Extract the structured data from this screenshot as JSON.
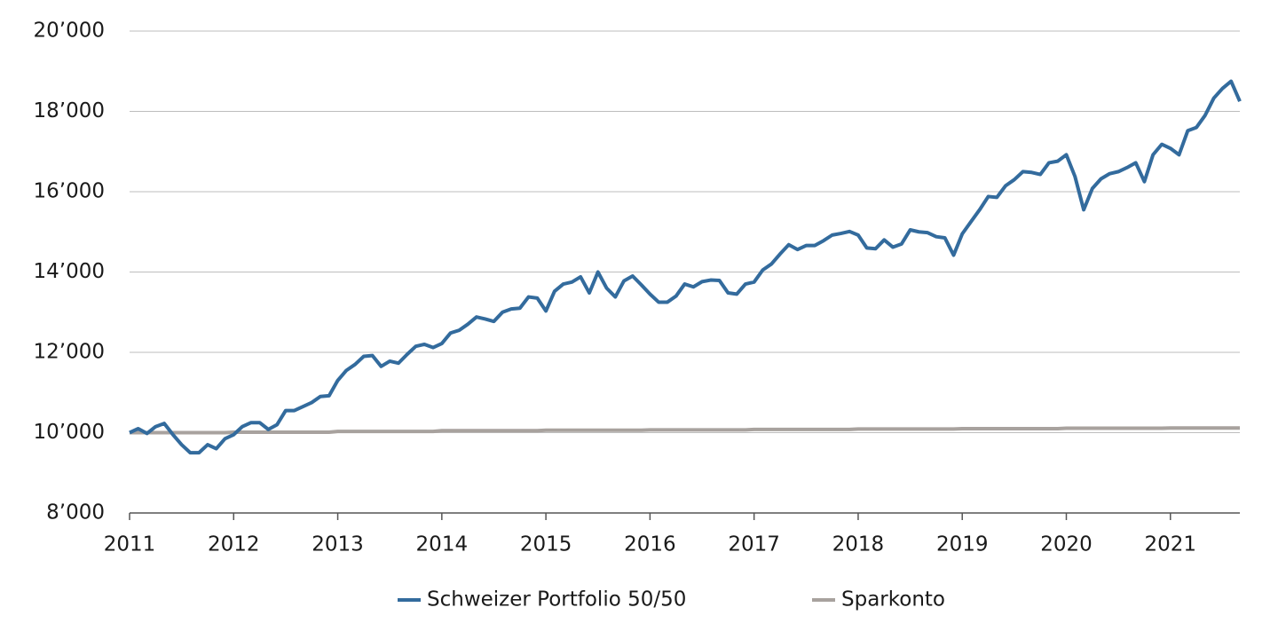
{
  "chart_data": {
    "type": "line",
    "x": [
      2011,
      2011.083,
      2011.167,
      2011.25,
      2011.333,
      2011.417,
      2011.5,
      2011.583,
      2011.667,
      2011.75,
      2011.833,
      2011.917,
      2012,
      2012.083,
      2012.167,
      2012.25,
      2012.333,
      2012.417,
      2012.5,
      2012.583,
      2012.667,
      2012.75,
      2012.833,
      2012.917,
      2013,
      2013.083,
      2013.167,
      2013.25,
      2013.333,
      2013.417,
      2013.5,
      2013.583,
      2013.667,
      2013.75,
      2013.833,
      2013.917,
      2014,
      2014.083,
      2014.167,
      2014.25,
      2014.333,
      2014.417,
      2014.5,
      2014.583,
      2014.667,
      2014.75,
      2014.833,
      2014.917,
      2015,
      2015.083,
      2015.167,
      2015.25,
      2015.333,
      2015.417,
      2015.5,
      2015.583,
      2015.667,
      2015.75,
      2015.833,
      2015.917,
      2016,
      2016.083,
      2016.167,
      2016.25,
      2016.333,
      2016.417,
      2016.5,
      2016.583,
      2016.667,
      2016.75,
      2016.833,
      2016.917,
      2017,
      2017.083,
      2017.167,
      2017.25,
      2017.333,
      2017.417,
      2017.5,
      2017.583,
      2017.667,
      2017.75,
      2017.833,
      2017.917,
      2018,
      2018.083,
      2018.167,
      2018.25,
      2018.333,
      2018.417,
      2018.5,
      2018.583,
      2018.667,
      2018.75,
      2018.833,
      2018.917,
      2019,
      2019.083,
      2019.167,
      2019.25,
      2019.333,
      2019.417,
      2019.5,
      2019.583,
      2019.667,
      2019.75,
      2019.833,
      2019.917,
      2020,
      2020.083,
      2020.167,
      2020.25,
      2020.333,
      2020.417,
      2020.5,
      2020.583,
      2020.667,
      2020.75,
      2020.833,
      2020.917,
      2021,
      2021.083,
      2021.167,
      2021.25,
      2021.333,
      2021.417,
      2021.5,
      2021.583,
      2021.667
    ],
    "series": [
      {
        "name": "Schweizer Portfolio 50/50",
        "color": "#336b9d",
        "values": [
          10000,
          10100,
          9980,
          10150,
          10230,
          9950,
          9700,
          9500,
          9500,
          9700,
          9600,
          9850,
          9950,
          10150,
          10250,
          10250,
          10080,
          10200,
          10550,
          10550,
          10650,
          10750,
          10900,
          10920,
          11300,
          11550,
          11700,
          11900,
          11920,
          11650,
          11780,
          11730,
          11950,
          12150,
          12200,
          12120,
          12220,
          12480,
          12550,
          12700,
          12880,
          12830,
          12770,
          13000,
          13080,
          13100,
          13380,
          13350,
          13030,
          13520,
          13700,
          13750,
          13880,
          13480,
          14000,
          13600,
          13380,
          13780,
          13900,
          13680,
          13450,
          13250,
          13250,
          13400,
          13700,
          13630,
          13760,
          13800,
          13790,
          13480,
          13450,
          13700,
          13750,
          14050,
          14200,
          14450,
          14680,
          14560,
          14660,
          14660,
          14780,
          14920,
          14960,
          15010,
          14920,
          14600,
          14580,
          14800,
          14620,
          14700,
          15050,
          15000,
          14980,
          14880,
          14850,
          14420,
          14950,
          15250,
          15550,
          15880,
          15860,
          16150,
          16300,
          16500,
          16480,
          16430,
          16720,
          16760,
          16920,
          16380,
          15550,
          16080,
          16320,
          16450,
          16500,
          16600,
          16720,
          16250,
          16920,
          17180,
          17080,
          16920,
          17520,
          17600,
          17900,
          18330,
          18570,
          18750,
          18250
        ]
      },
      {
        "name": "Sparkonto",
        "color": "#a8a29e",
        "values": [
          10000,
          10000,
          10000,
          10000,
          10000,
          10000,
          10000,
          10000,
          10000,
          10000,
          10000,
          10000,
          10010,
          10010,
          10010,
          10010,
          10010,
          10010,
          10010,
          10010,
          10010,
          10010,
          10010,
          10010,
          10030,
          10030,
          10030,
          10030,
          10030,
          10030,
          10030,
          10030,
          10030,
          10030,
          10030,
          10030,
          10050,
          10050,
          10050,
          10050,
          10050,
          10050,
          10050,
          10050,
          10050,
          10050,
          10050,
          10050,
          10060,
          10060,
          10060,
          10060,
          10060,
          10060,
          10060,
          10060,
          10060,
          10060,
          10060,
          10060,
          10070,
          10070,
          10070,
          10070,
          10070,
          10070,
          10070,
          10070,
          10070,
          10070,
          10070,
          10070,
          10080,
          10080,
          10080,
          10080,
          10080,
          10080,
          10080,
          10080,
          10080,
          10080,
          10080,
          10080,
          10090,
          10090,
          10090,
          10090,
          10090,
          10090,
          10090,
          10090,
          10090,
          10090,
          10090,
          10090,
          10100,
          10100,
          10100,
          10100,
          10100,
          10100,
          10100,
          10100,
          10100,
          10100,
          10100,
          10100,
          10110,
          10110,
          10110,
          10110,
          10110,
          10110,
          10110,
          10110,
          10110,
          10110,
          10110,
          10110,
          10115,
          10115,
          10115,
          10115,
          10115,
          10115,
          10115,
          10115,
          10115
        ]
      }
    ],
    "xlim": [
      2011,
      2021.667
    ],
    "xticks": [
      2011,
      2012,
      2013,
      2014,
      2015,
      2016,
      2017,
      2018,
      2019,
      2020,
      2021
    ],
    "ylim": [
      8000,
      20000
    ],
    "yticks": [
      {
        "value": 8000,
        "label": "8’000"
      },
      {
        "value": 10000,
        "label": "10’000"
      },
      {
        "value": 12000,
        "label": "12’000"
      },
      {
        "value": 14000,
        "label": "14’000"
      },
      {
        "value": 16000,
        "label": "16’000"
      },
      {
        "value": 18000,
        "label": "18’000"
      },
      {
        "value": 20000,
        "label": "20’000"
      }
    ],
    "grid": true,
    "legend": "bottom"
  }
}
